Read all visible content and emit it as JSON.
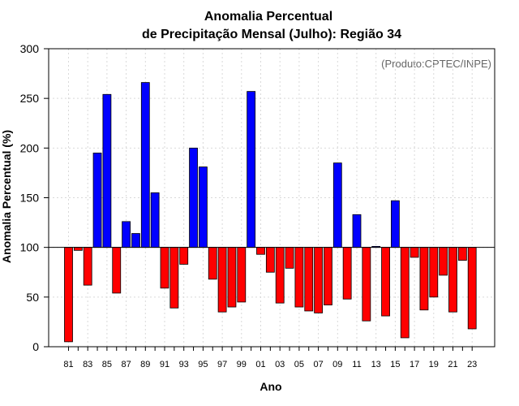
{
  "chart_data": {
    "type": "bar",
    "title": "Anomalia Percentual",
    "subtitle": "de Precipitação Mensal (Julho): Região 34",
    "xlabel": "Ano",
    "ylabel": "Anomalia Percentual (%)",
    "credit": "(Produto:CPTEC/INPE)",
    "ylim": [
      0,
      300
    ],
    "yticks": [
      0,
      50,
      100,
      150,
      200,
      250,
      300
    ],
    "baseline": 100,
    "grid": true,
    "colors": {
      "above": "#0000ff",
      "below": "#ff0000",
      "outline": "#000000",
      "grid": "#d9d9d9",
      "baseline": "#000000"
    },
    "categories": [
      "81",
      "82",
      "83",
      "84",
      "85",
      "86",
      "87",
      "88",
      "89",
      "90",
      "91",
      "92",
      "93",
      "94",
      "95",
      "96",
      "97",
      "98",
      "99",
      "00",
      "01",
      "02",
      "03",
      "04",
      "05",
      "06",
      "07",
      "08",
      "09",
      "10",
      "11",
      "12",
      "13",
      "14",
      "15",
      "16",
      "17",
      "18",
      "19",
      "20",
      "21",
      "22",
      "23"
    ],
    "xtick_labels": [
      "81",
      "83",
      "85",
      "87",
      "89",
      "91",
      "93",
      "95",
      "97",
      "99",
      "01",
      "03",
      "05",
      "07",
      "09",
      "11",
      "13",
      "15",
      "17",
      "19",
      "21",
      "23"
    ],
    "values": [
      5,
      97,
      62,
      195,
      254,
      54,
      126,
      114,
      266,
      155,
      59,
      39,
      83,
      200,
      181,
      68,
      35,
      40,
      45,
      257,
      93,
      75,
      44,
      79,
      40,
      36,
      34,
      42,
      185,
      48,
      133,
      26,
      101,
      31,
      147,
      9,
      90,
      37,
      50,
      72,
      35,
      87,
      18
    ]
  }
}
